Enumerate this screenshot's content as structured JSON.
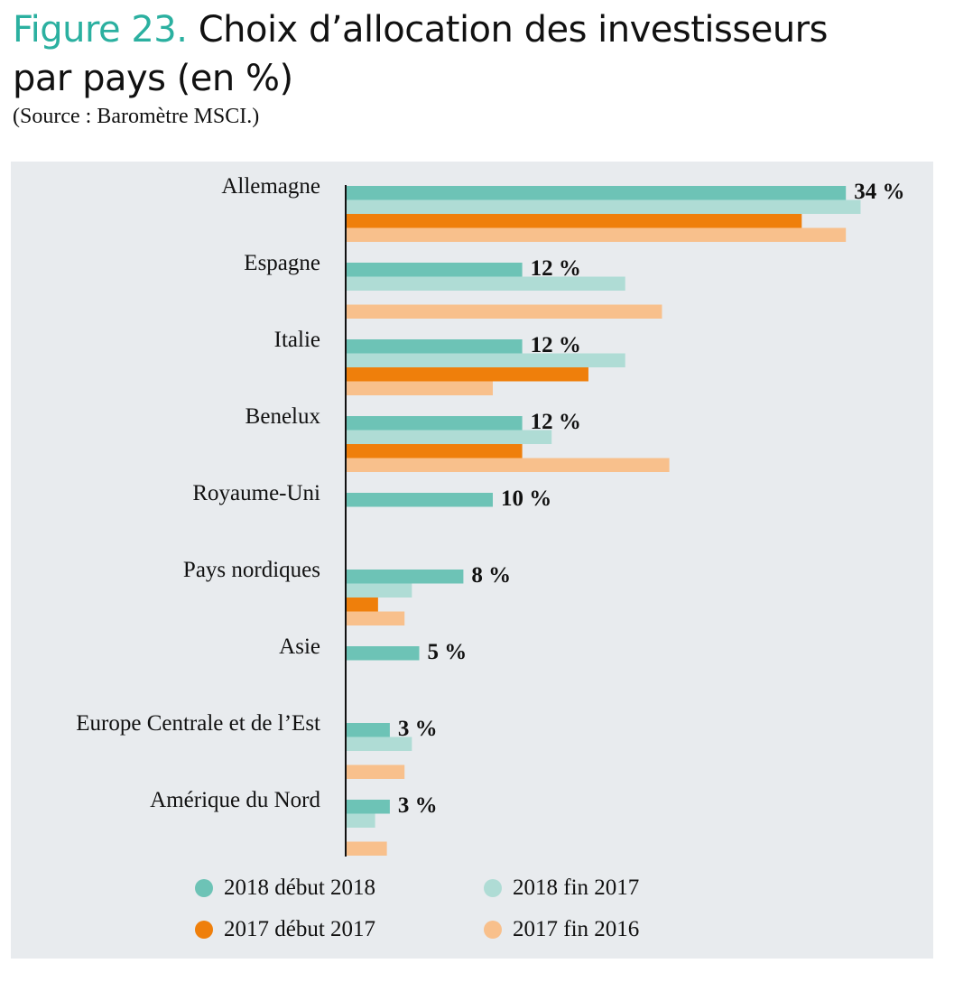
{
  "figure": {
    "label": "Figure 23.",
    "title_line1": "Choix d’allocation des investisseurs",
    "title_line2": "par pays (en %)",
    "source": "(Source : Baromètre MSCI.)"
  },
  "chart_data": {
    "type": "bar",
    "orientation": "horizontal",
    "categories": [
      "Allemagne",
      "Espagne",
      "Italie",
      "Benelux",
      "Royaume-Uni",
      "Pays nordiques",
      "Asie",
      "Europe Centrale et de l’Est",
      "Amérique du Nord"
    ],
    "series": [
      {
        "name": "2018 début 2018",
        "color": "#6dc3b6",
        "values": [
          34,
          12,
          12,
          12,
          10,
          8,
          5,
          3,
          3
        ]
      },
      {
        "name": "2018 fin 2017",
        "color": "#afdcd5",
        "values": [
          35,
          19,
          19,
          14,
          null,
          4.5,
          null,
          4.5,
          2
        ]
      },
      {
        "name": "2017 début 2017",
        "color": "#ef7f0b",
        "values": [
          31,
          null,
          16.5,
          12,
          null,
          2.2,
          null,
          null,
          null
        ]
      },
      {
        "name": "2017 fin 2016",
        "color": "#f8c08c",
        "values": [
          34,
          21.5,
          10,
          22,
          null,
          4,
          null,
          4,
          2.8
        ]
      }
    ],
    "data_labels": [
      "34 %",
      "12 %",
      "12 %",
      "12 %",
      "10 %",
      "8 %",
      "5 %",
      "3 %",
      "3 %"
    ],
    "xlim": [
      0,
      36
    ],
    "grid": false,
    "legend_position": "bottom"
  }
}
